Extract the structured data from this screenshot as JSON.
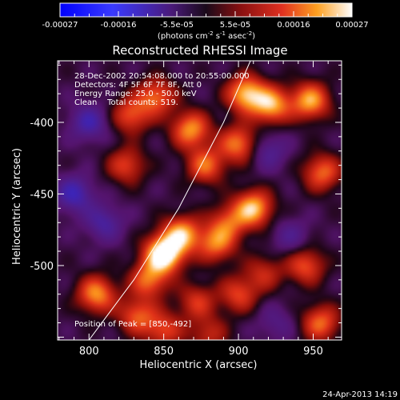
{
  "colorbar": {
    "ticks": [
      "-0.00027",
      "-0.00016",
      "-5.5e-05",
      "5.5e-05",
      "0.00016",
      "0.00027"
    ],
    "unit_text": "(photons cm",
    "unit_sup1": "-2",
    "unit_mid": " s",
    "unit_sup2": "-1",
    "unit_end": " asec",
    "unit_sup3": "-2",
    "unit_close": ")",
    "range": [
      -0.00027,
      0.00027
    ]
  },
  "chart_data": {
    "type": "heatmap",
    "title": "Reconstructed RHESSI Image",
    "xlabel": "Heliocentric X (arcsec)",
    "ylabel": "Heliocentric Y (arcsec)",
    "xlim": [
      779,
      969
    ],
    "ylim": [
      -552,
      -357
    ],
    "xticks": [
      800,
      850,
      900,
      950
    ],
    "yticks": [
      -400,
      -450,
      -500
    ],
    "annotations": [
      "28-Dec-2002 20:54:08.000 to 20:55:00.000",
      "Detectors: 4F 5F 6F 7F 8F, Att 0",
      "Energy Range: 25.0 - 50.0 keV",
      "Clean    Total counts: 519."
    ],
    "peak_label": "Position of Peak = [850,-492]",
    "peak": [
      850,
      -492
    ],
    "limb_curve": [
      [
        800,
        -552
      ],
      [
        830,
        -510
      ],
      [
        860,
        -460
      ],
      [
        890,
        -400
      ],
      [
        908,
        -357
      ]
    ],
    "sources": [
      {
        "x": 850,
        "y": -492,
        "amp": 1.0
      },
      {
        "x": 862,
        "y": -478,
        "amp": 0.7
      },
      {
        "x": 885,
        "y": -485,
        "amp": 0.55
      },
      {
        "x": 905,
        "y": -380,
        "amp": 0.75
      },
      {
        "x": 922,
        "y": -388,
        "amp": 0.7
      },
      {
        "x": 948,
        "y": -385,
        "amp": 0.7
      },
      {
        "x": 956,
        "y": -435,
        "amp": 0.55
      },
      {
        "x": 900,
        "y": -415,
        "amp": 0.6
      },
      {
        "x": 878,
        "y": -430,
        "amp": 0.55
      },
      {
        "x": 868,
        "y": -405,
        "amp": 0.65
      },
      {
        "x": 828,
        "y": -395,
        "amp": 0.5
      },
      {
        "x": 825,
        "y": -430,
        "amp": 0.45
      },
      {
        "x": 845,
        "y": -382,
        "amp": 0.55
      },
      {
        "x": 910,
        "y": -460,
        "amp": 0.75
      },
      {
        "x": 893,
        "y": -470,
        "amp": 0.45
      },
      {
        "x": 840,
        "y": -510,
        "amp": 0.55
      },
      {
        "x": 805,
        "y": -520,
        "amp": 0.65
      },
      {
        "x": 832,
        "y": -535,
        "amp": 0.5
      },
      {
        "x": 850,
        "y": -545,
        "amp": 0.45
      },
      {
        "x": 872,
        "y": -525,
        "amp": 0.4
      },
      {
        "x": 900,
        "y": -520,
        "amp": 0.45
      },
      {
        "x": 945,
        "y": -500,
        "amp": 0.5
      },
      {
        "x": 955,
        "y": -540,
        "amp": 0.55
      },
      {
        "x": 917,
        "y": -505,
        "amp": 0.35
      },
      {
        "x": 880,
        "y": -548,
        "amp": 0.35
      },
      {
        "x": 790,
        "y": -450,
        "amp": -0.45
      },
      {
        "x": 800,
        "y": -400,
        "amp": -0.4
      },
      {
        "x": 810,
        "y": -470,
        "amp": -0.35
      },
      {
        "x": 920,
        "y": -420,
        "amp": -0.3
      },
      {
        "x": 935,
        "y": -480,
        "amp": -0.25
      },
      {
        "x": 925,
        "y": -540,
        "amp": -0.2
      }
    ]
  },
  "footer": {
    "date": "24-Apr-2013 14:19"
  }
}
